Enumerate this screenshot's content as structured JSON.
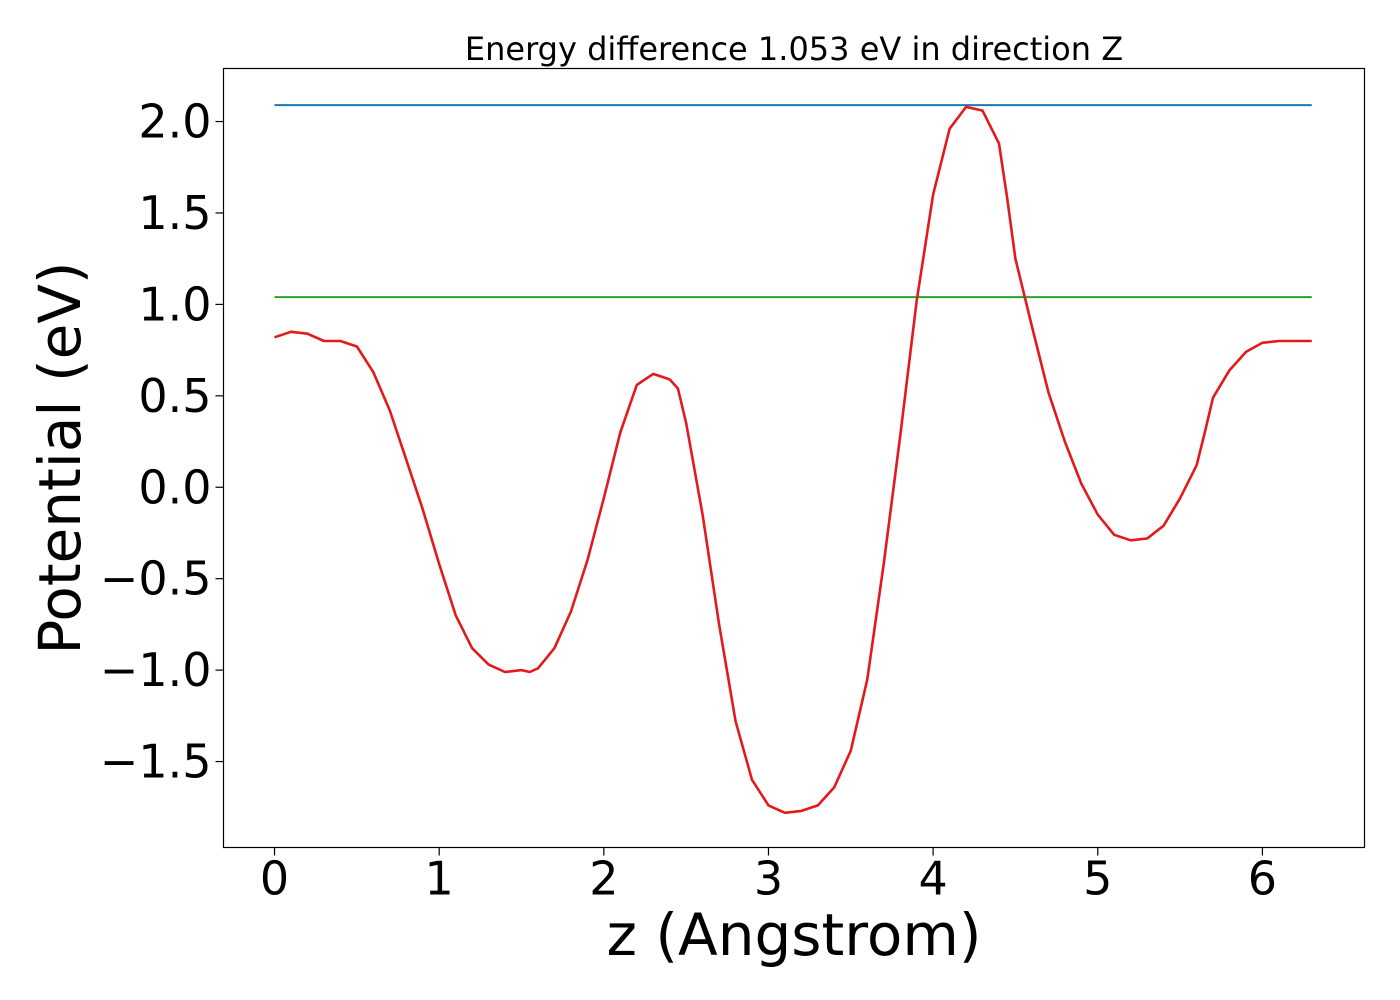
{
  "chart_data": {
    "type": "line",
    "title": "Energy difference 1.053 eV in direction Z",
    "xlabel": "z (Angstrom)",
    "ylabel": "Potential (eV)",
    "xlim": [
      -0.31,
      6.62
    ],
    "ylim": [
      -1.97,
      2.29
    ],
    "xticks": [
      0,
      1,
      2,
      3,
      4,
      5,
      6
    ],
    "xtick_labels": [
      "0",
      "1",
      "2",
      "3",
      "4",
      "5",
      "6"
    ],
    "yticks": [
      2.0,
      1.5,
      1.0,
      0.5,
      0.0,
      -0.5,
      -1.0,
      -1.5
    ],
    "ytick_labels": [
      "2.0",
      "1.5",
      "1.0",
      "0.5",
      "0.0",
      "−0.5",
      "−1.0",
      "−1.5"
    ],
    "grid": false,
    "legend": "none",
    "series": [
      {
        "color": "#1f77b4",
        "x": [
          0,
          6.3
        ],
        "y": [
          2.09,
          2.09
        ]
      },
      {
        "color": "#2ca02c",
        "x": [
          0,
          6.3
        ],
        "y": [
          1.04,
          1.04
        ]
      },
      {
        "color": "#e31a1c",
        "x": [
          0.0,
          0.1,
          0.2,
          0.3,
          0.4,
          0.5,
          0.6,
          0.7,
          0.8,
          0.9,
          1.0,
          1.1,
          1.2,
          1.3,
          1.4,
          1.5,
          1.55,
          1.6,
          1.7,
          1.8,
          1.9,
          2.0,
          2.1,
          2.2,
          2.3,
          2.4,
          2.45,
          2.5,
          2.6,
          2.7,
          2.8,
          2.9,
          3.0,
          3.1,
          3.2,
          3.3,
          3.4,
          3.5,
          3.6,
          3.7,
          3.8,
          3.9,
          4.0,
          4.1,
          4.2,
          4.3,
          4.4,
          4.45,
          4.5,
          4.6,
          4.7,
          4.8,
          4.9,
          5.0,
          5.1,
          5.2,
          5.3,
          5.4,
          5.5,
          5.6,
          5.65,
          5.7,
          5.8,
          5.9,
          6.0,
          6.1,
          6.2,
          6.3
        ],
        "y": [
          0.82,
          0.85,
          0.84,
          0.8,
          0.8,
          0.77,
          0.63,
          0.42,
          0.15,
          -0.12,
          -0.42,
          -0.7,
          -0.88,
          -0.97,
          -1.01,
          -1.0,
          -1.01,
          -0.99,
          -0.88,
          -0.68,
          -0.4,
          -0.06,
          0.3,
          0.56,
          0.62,
          0.59,
          0.54,
          0.35,
          -0.15,
          -0.75,
          -1.28,
          -1.6,
          -1.74,
          -1.78,
          -1.77,
          -1.74,
          -1.64,
          -1.44,
          -1.05,
          -0.42,
          0.28,
          1.02,
          1.6,
          1.96,
          2.08,
          2.06,
          1.88,
          1.58,
          1.25,
          0.88,
          0.52,
          0.25,
          0.02,
          -0.15,
          -0.26,
          -0.29,
          -0.28,
          -0.21,
          -0.06,
          0.12,
          0.3,
          0.49,
          0.64,
          0.74,
          0.79,
          0.8,
          0.8,
          0.8
        ]
      }
    ]
  }
}
